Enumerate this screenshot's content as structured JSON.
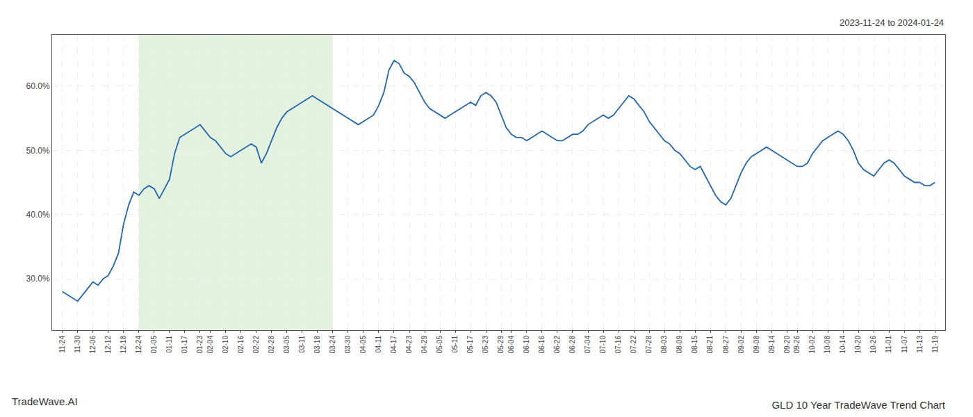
{
  "chart_data": {
    "type": "line",
    "title": "GLD 10 Year TradeWave Trend Chart",
    "subtitle": "2023-11-24 to 2024-01-24",
    "annotations": [
      "TradeWave.AI"
    ],
    "color": "#2166ac",
    "ylim": [
      22,
      68
    ],
    "yticks": [
      {
        "value": 30.0,
        "label": "30.0%"
      },
      {
        "value": 40.0,
        "label": "40.0%"
      },
      {
        "value": 50.0,
        "label": "50.0%"
      },
      {
        "value": 60.0,
        "label": "60.0%"
      }
    ],
    "grid": true,
    "shade": {
      "start": "12-24",
      "end": "03-24",
      "color": "#c8e6c0"
    },
    "categories": [
      "11-24",
      null,
      null,
      "11-30",
      null,
      null,
      "12-06",
      null,
      null,
      "12-12",
      null,
      null,
      "12-18",
      null,
      null,
      "12-24",
      null,
      null,
      "01-05",
      null,
      null,
      "01-11",
      null,
      null,
      "01-17",
      null,
      null,
      "01-23",
      null,
      "02-04",
      null,
      null,
      "02-10",
      null,
      null,
      "02-16",
      null,
      null,
      "02-22",
      null,
      null,
      "02-28",
      null,
      null,
      "03-05",
      null,
      null,
      "03-11",
      null,
      null,
      "03-18",
      null,
      null,
      "03-24",
      null,
      null,
      "03-30",
      null,
      null,
      "04-05",
      null,
      null,
      "04-11",
      null,
      null,
      "04-17",
      null,
      null,
      "04-23",
      null,
      null,
      "04-29",
      null,
      null,
      "05-05",
      null,
      null,
      "05-11",
      null,
      null,
      "05-17",
      null,
      null,
      "05-23",
      null,
      null,
      "05-29",
      null,
      "06-04",
      null,
      null,
      "06-10",
      null,
      null,
      "06-16",
      null,
      null,
      "06-22",
      null,
      null,
      "06-28",
      null,
      null,
      "07-04",
      null,
      null,
      "07-10",
      null,
      null,
      "07-16",
      null,
      null,
      "07-22",
      null,
      null,
      "07-28",
      null,
      null,
      "08-03",
      null,
      null,
      "08-09",
      null,
      null,
      "08-15",
      null,
      null,
      "08-21",
      null,
      null,
      "08-27",
      null,
      null,
      "09-02",
      null,
      null,
      "09-08",
      null,
      null,
      "09-14",
      null,
      null,
      "09-20",
      null,
      "09-26",
      null,
      null,
      "10-02",
      null,
      null,
      "10-08",
      null,
      null,
      "10-14",
      null,
      null,
      "10-20",
      null,
      null,
      "10-26",
      null,
      null,
      "11-01",
      null,
      null,
      "11-07",
      null,
      null,
      "11-13",
      null,
      null,
      "11-19"
    ],
    "values": [
      28.0,
      27.5,
      27.0,
      26.5,
      27.5,
      28.5,
      29.5,
      29.0,
      30.0,
      30.5,
      32.0,
      34.0,
      38.5,
      41.5,
      43.5,
      43.0,
      44.0,
      44.5,
      44.0,
      42.5,
      44.0,
      45.5,
      49.5,
      52.0,
      52.5,
      53.0,
      53.5,
      54.0,
      53.0,
      52.0,
      51.5,
      50.5,
      49.5,
      49.0,
      49.5,
      50.0,
      50.5,
      51.0,
      50.5,
      48.0,
      49.5,
      51.5,
      53.5,
      55.0,
      56.0,
      56.5,
      57.0,
      57.5,
      58.0,
      58.5,
      58.0,
      57.5,
      57.0,
      56.5,
      56.0,
      55.5,
      55.0,
      54.5,
      54.0,
      54.5,
      55.0,
      55.5,
      57.0,
      59.0,
      62.5,
      64.0,
      63.5,
      62.0,
      61.5,
      60.5,
      59.0,
      57.5,
      56.5,
      56.0,
      55.5,
      55.0,
      55.5,
      56.0,
      56.5,
      57.0,
      57.5,
      57.0,
      58.5,
      59.0,
      58.5,
      57.5,
      55.5,
      53.5,
      52.5,
      52.0,
      52.0,
      51.5,
      52.0,
      52.5,
      53.0,
      52.5,
      52.0,
      51.5,
      51.5,
      52.0,
      52.5,
      52.5,
      53.0,
      54.0,
      54.5,
      55.0,
      55.5,
      55.0,
      55.5,
      56.5,
      57.5,
      58.5,
      58.0,
      57.0,
      56.0,
      54.5,
      53.5,
      52.5,
      51.5,
      51.0,
      50.0,
      49.5,
      48.5,
      47.5,
      47.0,
      47.5,
      46.0,
      44.5,
      43.0,
      42.0,
      41.5,
      42.5,
      44.5,
      46.5,
      48.0,
      49.0,
      49.5,
      50.0,
      50.5,
      50.0,
      49.5,
      49.0,
      48.5,
      48.0,
      47.5,
      47.5,
      48.0,
      49.5,
      50.5,
      51.5,
      52.0,
      52.5,
      53.0,
      52.5,
      51.5,
      50.0,
      48.0,
      47.0,
      46.5,
      46.0,
      47.0,
      48.0,
      48.5,
      48.0,
      47.0,
      46.0,
      45.5,
      45.0,
      45.0,
      44.5,
      44.5,
      45.0
    ]
  }
}
